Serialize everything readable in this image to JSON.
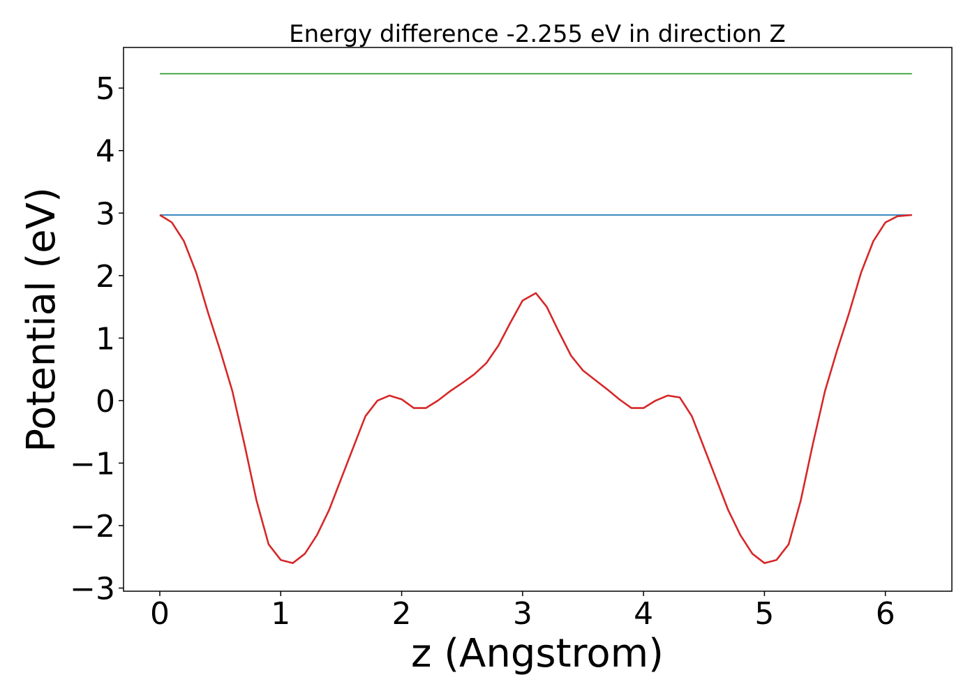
{
  "chart_data": {
    "type": "line",
    "title": "Energy difference -2.255 eV in direction Z",
    "xlabel": "z (Angstrom)",
    "ylabel": "Potential (eV)",
    "xlim": [
      -0.3,
      6.55
    ],
    "ylim": [
      -3.05,
      5.65
    ],
    "xticks": [
      0,
      1,
      2,
      3,
      4,
      5,
      6
    ],
    "yticks": [
      -3,
      -2,
      -1,
      0,
      1,
      2,
      3,
      4,
      5
    ],
    "xtick_labels": [
      "0",
      "1",
      "2",
      "3",
      "4",
      "5",
      "6"
    ],
    "ytick_labels": [
      "−3",
      "−2",
      "−1",
      "0",
      "1",
      "2",
      "3",
      "4",
      "5"
    ],
    "grid": false,
    "legend": "none",
    "series": [
      {
        "color": "#2ca02c",
        "x": [
          0,
          6.22
        ],
        "y": [
          5.23,
          5.23
        ]
      },
      {
        "color": "#1f77b4",
        "x": [
          0,
          6.22
        ],
        "y": [
          2.97,
          2.97
        ]
      },
      {
        "color": "#d62728",
        "x": [
          0,
          0.1,
          0.2,
          0.3,
          0.4,
          0.5,
          0.6,
          0.7,
          0.8,
          0.9,
          1.0,
          1.1,
          1.2,
          1.3,
          1.4,
          1.5,
          1.6,
          1.7,
          1.8,
          1.9,
          2.0,
          2.1,
          2.2,
          2.3,
          2.4,
          2.5,
          2.6,
          2.7,
          2.8,
          2.9,
          3.0,
          3.11,
          3.2,
          3.3,
          3.4,
          3.5,
          3.6,
          3.7,
          3.8,
          3.9,
          4.0,
          4.1,
          4.2,
          4.3,
          4.4,
          4.5,
          4.6,
          4.7,
          4.8,
          4.9,
          5.0,
          5.1,
          5.2,
          5.3,
          5.4,
          5.5,
          5.6,
          5.7,
          5.8,
          5.9,
          6.0,
          6.1,
          6.22
        ],
        "y": [
          2.97,
          2.85,
          2.55,
          2.05,
          1.4,
          0.8,
          0.15,
          -0.7,
          -1.6,
          -2.3,
          -2.55,
          -2.6,
          -2.45,
          -2.15,
          -1.75,
          -1.25,
          -0.75,
          -0.25,
          0.0,
          0.08,
          0.02,
          -0.12,
          -0.12,
          0.0,
          0.15,
          0.28,
          0.42,
          0.6,
          0.88,
          1.25,
          1.6,
          1.72,
          1.5,
          1.1,
          0.72,
          0.48,
          0.33,
          0.18,
          0.02,
          -0.12,
          -0.12,
          0.0,
          0.08,
          0.05,
          -0.25,
          -0.75,
          -1.25,
          -1.75,
          -2.15,
          -2.45,
          -2.6,
          -2.55,
          -2.3,
          -1.6,
          -0.7,
          0.15,
          0.8,
          1.4,
          2.05,
          2.55,
          2.85,
          2.95,
          2.97
        ]
      }
    ]
  }
}
